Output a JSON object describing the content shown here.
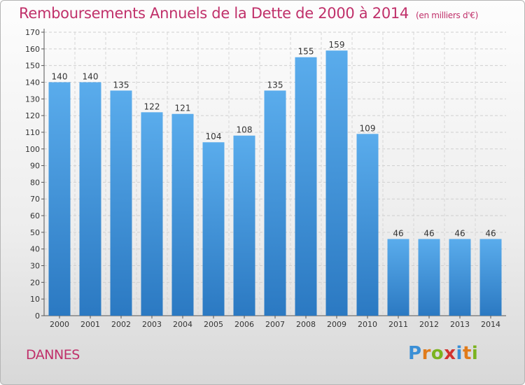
{
  "header": {
    "title": "Remboursements Annuels de la Dette de 2000 à 2014",
    "unit": "(en milliers d'€)"
  },
  "footer": {
    "city": "DANNES",
    "logo_letters": [
      "P",
      "r",
      "o",
      "x",
      "i",
      "t",
      "i"
    ],
    "logo_colors": [
      "#3a8fd6",
      "#e07b1a",
      "#7bb31f",
      "#d2332f",
      "#3a8fd6",
      "#e07b1a",
      "#7bb31f"
    ]
  },
  "chart_data": {
    "type": "bar",
    "categories": [
      "2000",
      "2001",
      "2002",
      "2003",
      "2004",
      "2005",
      "2006",
      "2007",
      "2008",
      "2009",
      "2010",
      "2011",
      "2012",
      "2013",
      "2014"
    ],
    "values": [
      140,
      140,
      135,
      122,
      121,
      104,
      108,
      135,
      155,
      159,
      109,
      46,
      46,
      46,
      46
    ],
    "ylim": [
      0,
      170
    ],
    "yticks": [
      0,
      10,
      20,
      30,
      40,
      50,
      60,
      70,
      80,
      90,
      100,
      110,
      120,
      130,
      140,
      150,
      160,
      170
    ],
    "grid": true,
    "bar_color_top": "#5aacec",
    "bar_color_bottom": "#2b79c2",
    "data_labels": true
  }
}
